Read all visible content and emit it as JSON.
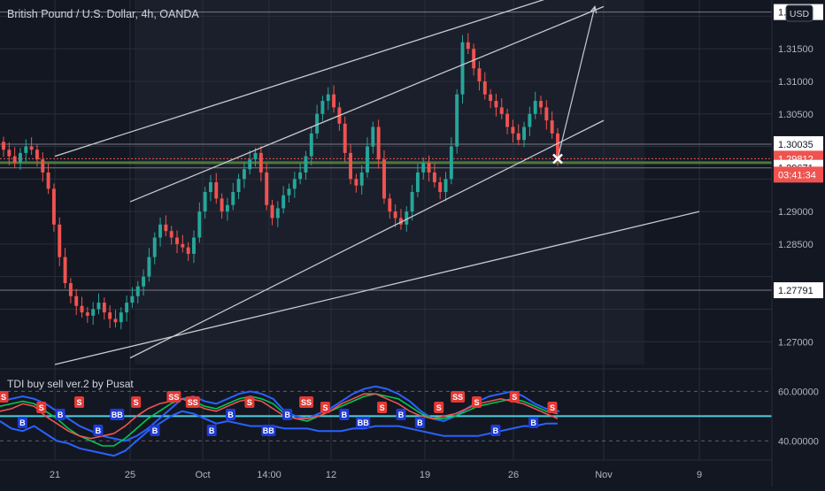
{
  "symbol_title": "British Pound / U.S. Dollar, 4h, OANDA",
  "currency_button": "USD",
  "indicator_title": "TDI buy sell ver.2 by Pusat",
  "colors": {
    "background": "#131722",
    "grid": "#2a2e39",
    "up": "#26a69a",
    "down": "#ef5350",
    "text": "#d1d4dc",
    "axis_text": "#b2b5be",
    "accent_blue": "#2962ff",
    "cyan_line": "#4dd0e1",
    "level_green": "#4a7a3a"
  },
  "chart_data": [
    {
      "type": "candlestick",
      "title": "British Pound / U.S. Dollar, 4h, OANDA",
      "x_tick_labels": [
        "21",
        "25",
        "Oct",
        "14:00",
        "12",
        "19",
        "26",
        "Nov",
        "9"
      ],
      "y_tick_labels": [
        "1.32065",
        "1.31500",
        "1.31000",
        "1.30500",
        "1.30035",
        "1.29812",
        "1.29671",
        "1.29000",
        "1.28500",
        "1.27791",
        "1.27000"
      ],
      "ylim": [
        1.2665,
        1.3225
      ],
      "horizontal_levels": [
        1.32065,
        1.30035,
        1.29671,
        1.27791
      ],
      "last_price": "1.29812",
      "countdown": "03:41:34",
      "close_series": [
        1.2995,
        1.2985,
        1.2975,
        1.299,
        1.3,
        1.2995,
        1.298,
        1.296,
        1.2935,
        1.288,
        1.283,
        1.279,
        1.277,
        1.2755,
        1.2745,
        1.274,
        1.275,
        1.276,
        1.2745,
        1.2735,
        1.273,
        1.2745,
        1.276,
        1.277,
        1.2785,
        1.28,
        1.283,
        1.286,
        1.288,
        1.287,
        1.286,
        1.285,
        1.2845,
        1.2835,
        1.286,
        1.29,
        1.293,
        1.2945,
        1.292,
        1.29,
        1.291,
        1.293,
        1.295,
        1.2965,
        1.298,
        1.299,
        1.296,
        1.291,
        1.289,
        1.2905,
        1.2925,
        1.2935,
        1.295,
        1.296,
        1.2985,
        1.302,
        1.305,
        1.307,
        1.308,
        1.306,
        1.3035,
        1.299,
        1.295,
        1.294,
        1.296,
        1.3,
        1.303,
        1.298,
        1.292,
        1.29,
        1.289,
        1.288,
        1.29,
        1.293,
        1.296,
        1.2975,
        1.296,
        1.2945,
        1.293,
        1.295,
        1.3,
        1.308,
        1.316,
        1.315,
        1.312,
        1.31,
        1.308,
        1.307,
        1.306,
        1.305,
        1.303,
        1.302,
        1.301,
        1.303,
        1.305,
        1.307,
        1.306,
        1.304,
        1.302,
        1.2981
      ],
      "channel_lines": [
        {
          "from": [
            "21",
            1.2985
          ],
          "to": [
            "Nov",
            1.3255
          ]
        },
        {
          "from": [
            "25",
            1.2915
          ],
          "to": [
            "Nov",
            1.3215
          ]
        },
        {
          "from": [
            "25",
            1.2675
          ],
          "to": [
            "Nov",
            1.304
          ]
        },
        {
          "from": [
            "21",
            1.2665
          ],
          "to": [
            "9",
            1.29
          ]
        }
      ],
      "projection_arrow": {
        "from": [
          "26",
          1.2981
        ],
        "to": [
          "Nov",
          1.3215
        ]
      }
    },
    {
      "type": "line",
      "title": "TDI buy sell ver.2 by Pusat",
      "y_tick_labels": [
        "60.00000",
        "40.00000"
      ],
      "ylim": [
        33,
        68
      ],
      "reference_levels": [
        60,
        50,
        40
      ],
      "series": [
        {
          "name": "",
          "values": [
            56,
            57,
            58,
            57,
            55,
            52,
            49,
            46,
            44,
            42,
            41,
            40,
            42,
            45,
            49,
            53,
            57,
            58,
            56,
            55,
            57,
            59,
            60,
            59,
            57,
            52,
            50,
            49,
            51,
            53,
            56,
            59,
            61,
            62,
            61,
            59,
            56,
            52,
            49,
            48,
            50,
            53,
            56,
            58,
            59,
            60,
            58,
            55,
            53,
            52
          ]
        },
        {
          "name": "",
          "values": [
            48,
            45,
            44,
            46,
            43,
            40,
            39,
            37,
            36,
            35,
            34,
            36,
            40,
            44,
            47,
            50,
            52,
            51,
            49,
            47,
            48,
            47,
            46,
            46,
            46,
            45,
            45,
            45,
            44,
            44,
            44,
            45,
            45,
            46,
            46,
            46,
            45,
            44,
            43,
            42,
            42,
            42,
            42,
            43,
            44,
            45,
            46,
            46,
            47,
            47
          ]
        },
        {
          "name": "",
          "values": [
            54,
            55,
            56,
            55,
            52,
            49,
            45,
            42,
            40,
            38,
            38,
            41,
            45,
            49,
            52,
            55,
            57,
            56,
            54,
            53,
            55,
            57,
            58,
            57,
            55,
            51,
            49,
            48,
            50,
            52,
            54,
            56,
            58,
            59,
            58,
            57,
            54,
            51,
            49,
            49,
            50,
            52,
            54,
            55,
            56,
            57,
            56,
            54,
            52,
            51
          ]
        },
        {
          "name": "",
          "values": [
            52,
            53,
            55,
            54,
            50,
            47,
            44,
            42,
            41,
            42,
            43,
            46,
            50,
            53,
            55,
            56,
            57,
            55,
            53,
            52,
            54,
            56,
            57,
            56,
            53,
            50,
            49,
            49,
            50,
            52,
            55,
            57,
            59,
            59,
            57,
            55,
            52,
            50,
            49,
            50,
            51,
            53,
            55,
            56,
            57,
            56,
            55,
            53,
            51,
            49
          ]
        }
      ],
      "signal_labels": [
        "S",
        "B",
        "S",
        "B",
        "S",
        "B",
        "BB",
        "S",
        "B",
        "SS",
        "SS",
        "B",
        "B",
        "S",
        "BB",
        "B",
        "SS",
        "S",
        "B",
        "BB",
        "S",
        "B",
        "B",
        "S",
        "SS",
        "S",
        "B",
        "S",
        "B",
        "S"
      ]
    }
  ]
}
